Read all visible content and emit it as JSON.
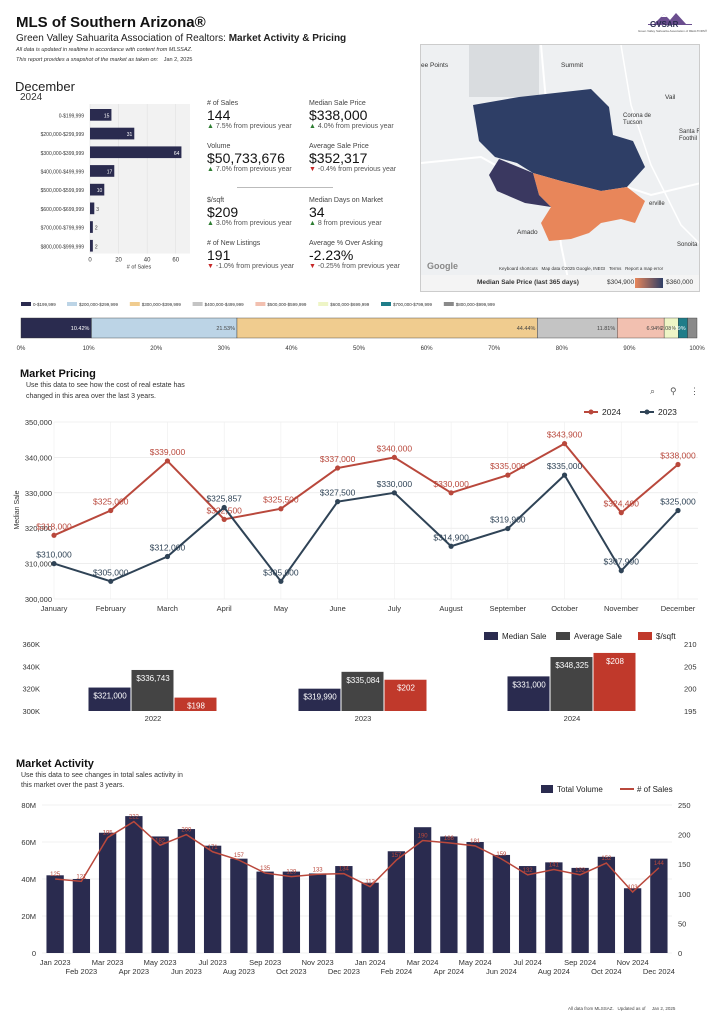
{
  "header": {
    "title": "MLS of Southern Arizona®",
    "subtitle_plain": "Green Valley Sahuarita Association of Realtors: ",
    "subtitle_bold": "Market Activity & Pricing",
    "note1": "All data is updated in realtime in accordance with content from MLSSAZ.",
    "note2": "This report provides a snapshot of the market as taken on:",
    "snapshot_date": "Jan 2, 2025",
    "logo_text": "GVSAR",
    "logo_caption": "Green Valley Sahuarita Association of REALTORS®"
  },
  "period": {
    "month": "December",
    "year": "2024"
  },
  "kpis": [
    {
      "label": "# of Sales",
      "value": "144",
      "change": "7.5% from previous year",
      "dir": "up",
      "arrow": "▲"
    },
    {
      "label": "Median Sale Price",
      "value": "$338,000",
      "change": "4.0% from previous year",
      "dir": "up",
      "arrow": "▲"
    },
    {
      "label": "Volume",
      "value": "$50,733,676",
      "change": "7.0% from previous year",
      "dir": "up",
      "arrow": "▲"
    },
    {
      "label": "Average Sale Price",
      "value": "$352,317",
      "change": "-0.4% from previous year",
      "dir": "down",
      "arrow": "▼"
    },
    {
      "label": "$/sqft",
      "value": "$209",
      "change": "3.0% from previous year",
      "dir": "up",
      "arrow": "▲"
    },
    {
      "label": "Median Days on Market",
      "value": "34",
      "change": "8 from previous year",
      "dir": "up",
      "arrow": "▲"
    },
    {
      "label": "# of New Listings",
      "value": "191",
      "change": "-1.0% from previous year",
      "dir": "down",
      "arrow": "▼"
    },
    {
      "label": "Average % Over Asking",
      "value": "-2.23%",
      "change": "-0.25% from previous year",
      "dir": "down",
      "arrow": "▼"
    }
  ],
  "map": {
    "labels": [
      "ee Points",
      "Summit",
      "Vail",
      "Corona de Tucson",
      "Santa R Foothil",
      "Amado",
      "Sonoita",
      "erville"
    ],
    "google": "Google",
    "footer": [
      "Keyboard shortcuts",
      "Map data ©2025 Google, INEGI",
      "Terms",
      "Report a map error"
    ],
    "legend_title": "Median Sale Price (last 365 days)",
    "legend_min": "$304,900",
    "legend_max": "$360,000",
    "colors": {
      "low": "#e8865a",
      "high": "#2e3e66"
    }
  },
  "section_pricing": {
    "title": "Market Pricing",
    "desc1": "Use this data to see how the cost of real estate has",
    "desc2": "changed in this area over the last 3 years.",
    "toolbar": {
      "search": "⌕",
      "filter": "⚲",
      "more": "⋮"
    }
  },
  "section_activity": {
    "title": "Market Activity",
    "desc1": "Use this data to see changes in total sales activity in",
    "desc2": "this market over the past 3 years."
  },
  "footer": {
    "source": "All data from MLSSAZ.",
    "updated_label": "Updated as of",
    "date": "Jan 2, 2025"
  },
  "colors": {
    "navy": "#2a2b4f",
    "red": "#c0392b",
    "redline": "#b9483c",
    "slate": "#2f4356",
    "gray": "#444444"
  },
  "chart_data": [
    {
      "id": "price_range_bar",
      "type": "bar",
      "orientation": "horizontal",
      "categories": [
        "0-$199,999",
        "$200,000-$299,999",
        "$300,000-$399,999",
        "$400,000-$499,999",
        "$500,000-$599,999",
        "$600,000-$699,999",
        "$700,000-$799,999",
        "$800,000-$999,999"
      ],
      "values": [
        15,
        31,
        64,
        17,
        10,
        3,
        2,
        2
      ],
      "xlabel": "# of Sales",
      "xticks": [
        "0",
        "20",
        "40",
        "60"
      ],
      "xlim": [
        0,
        70
      ]
    },
    {
      "id": "price_share_stacked",
      "type": "bar",
      "orientation": "stacked-100",
      "categories": [
        "0-$199,999",
        "$200,000-$299,999",
        "$300,000-$399,999",
        "$400,000-$499,999",
        "$500,000-$599,999",
        "$600,000-$699,999",
        "$700,000-$799,999",
        "$800,000-$999,999"
      ],
      "values": [
        10.42,
        21.53,
        44.44,
        11.81,
        6.94,
        2.08,
        1.39,
        1.39
      ],
      "labels": [
        "10.42%",
        "21.53%",
        "44.44%",
        "11.81%",
        "6.94%",
        "2.08%",
        "1.39%",
        ""
      ],
      "colors": [
        "#2a2b4f",
        "#bcd4e6",
        "#f0cc8f",
        "#c4c4c4",
        "#f2c0b0",
        "#eef5c6",
        "#1f7d89",
        "#8a8a8a"
      ],
      "xticks": [
        "0%",
        "10%",
        "20%",
        "30%",
        "40%",
        "50%",
        "60%",
        "70%",
        "80%",
        "90%",
        "100%"
      ]
    },
    {
      "id": "median_by_month",
      "type": "line",
      "title": "",
      "ylabel": "Median Sale",
      "categories": [
        "January",
        "February",
        "March",
        "April",
        "May",
        "June",
        "July",
        "August",
        "September",
        "October",
        "November",
        "December"
      ],
      "series": [
        {
          "name": "2024",
          "values": [
            318000,
            325000,
            339000,
            322500,
            325500,
            337000,
            340000,
            330000,
            335000,
            343900,
            324400,
            338000
          ],
          "labels": [
            "$318,000",
            "$325,000",
            "$339,000",
            "$322,500",
            "$325,500",
            "$337,000",
            "$340,000",
            "$330,000",
            "$335,000",
            "$343,900",
            "$324,400",
            "$338,000"
          ]
        },
        {
          "name": "2023",
          "values": [
            310000,
            305000,
            312000,
            325857,
            305000,
            327500,
            330000,
            314900,
            319900,
            335000,
            307990,
            325000
          ],
          "labels": [
            "$310,000",
            "$305,000",
            "$312,000",
            "$325,857",
            "$305,000",
            "$327,500",
            "$330,000",
            "$314,900",
            "$319,900",
            "$335,000",
            "$307,990",
            "$325,000"
          ]
        }
      ],
      "yticks": [
        "300,000",
        "310,000",
        "320,000",
        "330,000",
        "340,000",
        "350,000"
      ],
      "ylim": [
        300000,
        350000
      ]
    },
    {
      "id": "yearly_prices",
      "type": "bar",
      "categories": [
        "2022",
        "2023",
        "2024"
      ],
      "series": [
        {
          "name": "Median Sale",
          "axis": "left",
          "values": [
            321000,
            319990,
            331000
          ],
          "labels": [
            "$321,000",
            "$319,990",
            "$331,000"
          ]
        },
        {
          "name": "Average Sale",
          "axis": "left",
          "values": [
            336743,
            335084,
            348325
          ],
          "labels": [
            "$336,743",
            "$335,084",
            "$348,325"
          ]
        },
        {
          "name": "$/sqft",
          "axis": "right",
          "values": [
            198,
            202,
            208
          ],
          "labels": [
            "$198",
            "$202",
            "$208"
          ]
        }
      ],
      "yticks_left": [
        "300K",
        "320K",
        "340K",
        "360K"
      ],
      "ylim_left": [
        300000,
        360000
      ],
      "yticks_right": [
        "195",
        "200",
        "205",
        "210"
      ],
      "ylim_right": [
        195,
        210
      ]
    },
    {
      "id": "monthly_activity",
      "type": "bar",
      "categories": [
        "Jan 2023",
        "Feb 2023",
        "Mar 2023",
        "Apr 2023",
        "May 2023",
        "Jun 2023",
        "Jul 2023",
        "Aug 2023",
        "Sep 2023",
        "Oct 2023",
        "Nov 2023",
        "Dec 2023",
        "Jan 2024",
        "Feb 2024",
        "Mar 2024",
        "Apr 2024",
        "May 2024",
        "Jun 2024",
        "Jul 2024",
        "Aug 2024",
        "Sep 2024",
        "Oct 2024",
        "Nov 2024",
        "Dec 2024"
      ],
      "series": [
        {
          "name": "Total Volume",
          "axis": "left",
          "type": "bar",
          "values": [
            42000000,
            40000000,
            65000000,
            74000000,
            63000000,
            67000000,
            58000000,
            51000000,
            44000000,
            44000000,
            43000000,
            47000000,
            38000000,
            55000000,
            68000000,
            63000000,
            60000000,
            53000000,
            47000000,
            49000000,
            46000000,
            52000000,
            35000000,
            51000000
          ]
        },
        {
          "name": "# of Sales",
          "axis": "right",
          "type": "line",
          "values": [
            125,
            121,
            195,
            222,
            182,
            200,
            171,
            157,
            135,
            129,
            133,
            134,
            112,
            157,
            190,
            186,
            181,
            159,
            132,
            141,
            132,
            152,
            103,
            144
          ],
          "labels": [
            "125",
            "121",
            "195",
            "222",
            "182",
            "200",
            "171",
            "157",
            "135",
            "129",
            "133",
            "134",
            "112",
            "157",
            "190",
            "186",
            "181",
            "159",
            "132",
            "141",
            "132",
            "152",
            "103",
            "144"
          ]
        }
      ],
      "yticks_left": [
        "0",
        "20M",
        "40M",
        "60M",
        "80M"
      ],
      "ylim_left": [
        0,
        80000000
      ],
      "yticks_right": [
        "0",
        "50",
        "100",
        "150",
        "200",
        "250"
      ],
      "ylim_right": [
        0,
        250
      ]
    }
  ]
}
